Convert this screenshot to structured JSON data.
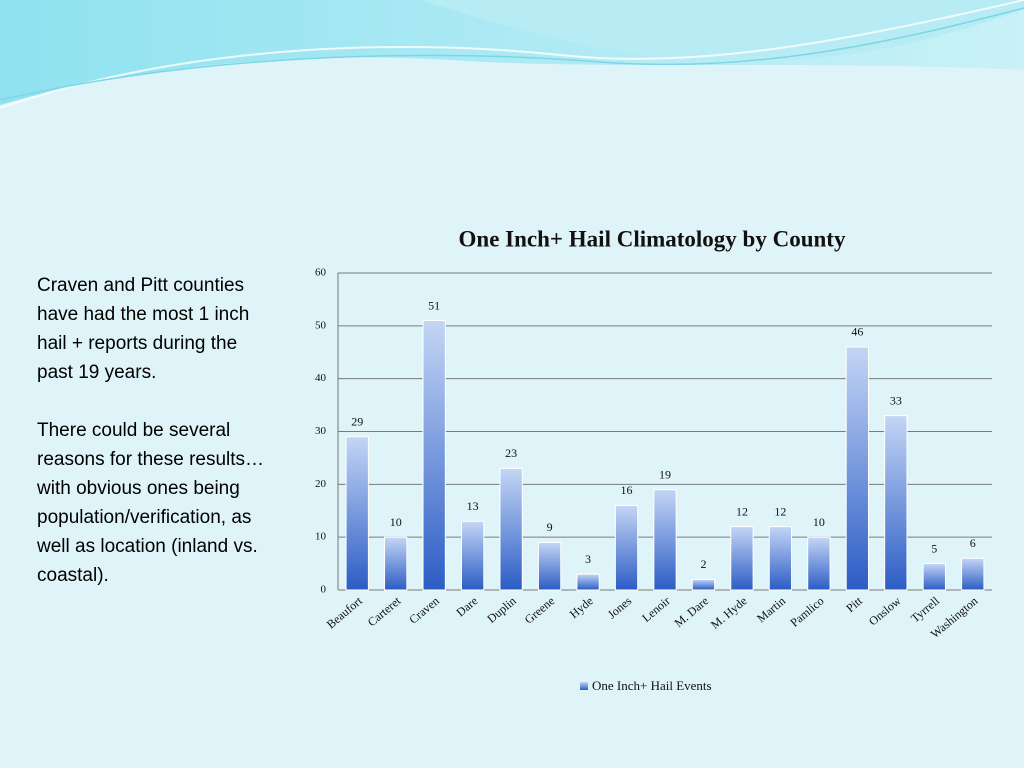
{
  "slide_text": {
    "paragraphs": [
      "Craven and Pitt counties have had the most 1 inch hail + reports during the past 19 years.",
      "There could be several reasons for these results…with obvious ones being population/verification, as well as location (inland vs. coastal)."
    ]
  },
  "chart_data": {
    "type": "bar",
    "title": "One Inch+ Hail Climatology by County",
    "categories": [
      "Beaufort",
      "Carteret",
      "Craven",
      "Dare",
      "Duplin",
      "Greene",
      "Hyde",
      "Jones",
      "Lenoir",
      "M. Dare",
      "M. Hyde",
      "Martin",
      "Pamlico",
      "Pitt",
      "Onslow",
      "Tyrrell",
      "Washington"
    ],
    "series": [
      {
        "name": "One Inch+ Hail Events",
        "color": "#2c5cc5",
        "values": [
          29,
          10,
          51,
          13,
          23,
          9,
          3,
          16,
          19,
          2,
          12,
          12,
          10,
          46,
          33,
          5,
          6
        ]
      }
    ],
    "ylim": [
      0,
      60
    ],
    "yticks": [
      0,
      10,
      20,
      30,
      40,
      50,
      60
    ],
    "grid": true,
    "legend": "bottom"
  }
}
